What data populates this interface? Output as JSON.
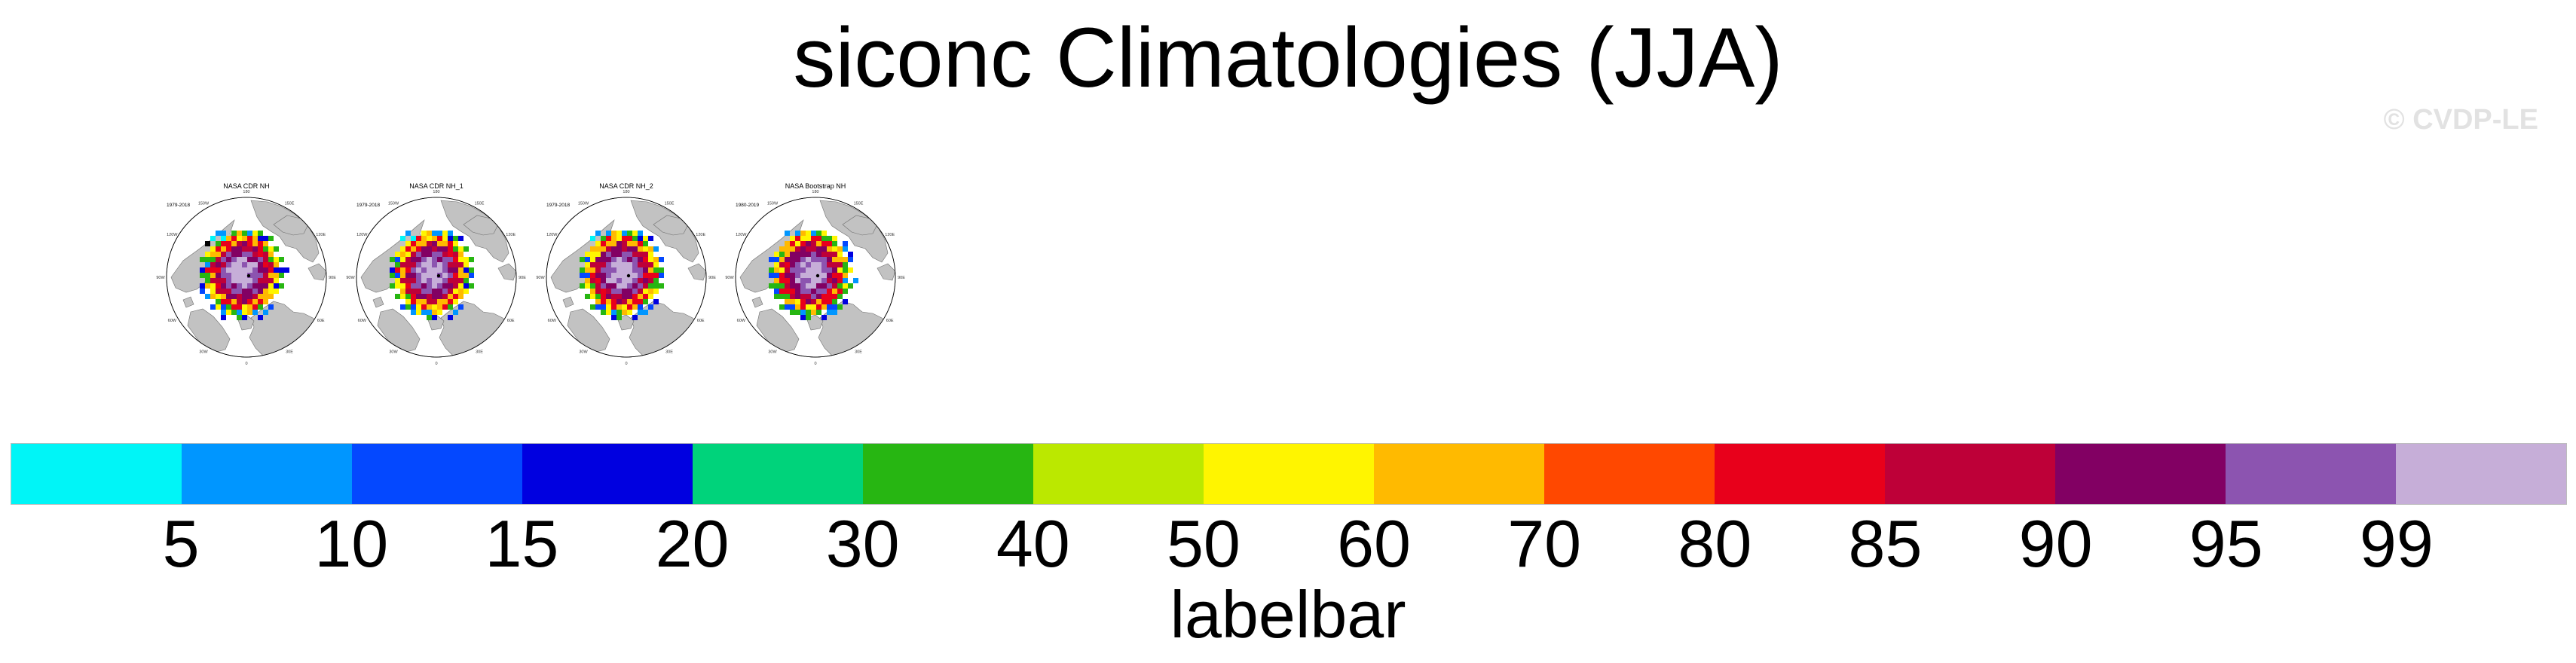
{
  "title": "siconc Climatologies (JJA)",
  "watermark": "© CVDP-LE",
  "panels": [
    {
      "title": "NASA CDR NH",
      "years": "1979-2018"
    },
    {
      "title": "NASA CDR NH_1",
      "years": "1979-2018"
    },
    {
      "title": "NASA CDR NH_2",
      "years": "1979-2018"
    },
    {
      "title": "NASA Bootstrap NH",
      "years": "1980-2019"
    }
  ],
  "longitude_labels": [
    "180",
    "150E",
    "120E",
    "90E",
    "60E",
    "30E",
    "0",
    "30W",
    "60W",
    "90W",
    "120W",
    "150W"
  ],
  "labelbar": {
    "title": "labelbar",
    "ticks": [
      "5",
      "10",
      "15",
      "20",
      "30",
      "40",
      "50",
      "60",
      "70",
      "80",
      "85",
      "90",
      "95",
      "99"
    ],
    "colors": [
      "#00f5f7",
      "#0096ff",
      "#0448ff",
      "#0000e0",
      "#00d37b",
      "#27b612",
      "#bbe800",
      "#fff500",
      "#ffba00",
      "#ff4800",
      "#e8001b",
      "#be0038",
      "#820063",
      "#8c54b0",
      "#c6aed8"
    ]
  },
  "map_colors": {
    "land": "#c2c2c2",
    "ocean": "#ffffff",
    "coast": "#6f6f6f"
  }
}
